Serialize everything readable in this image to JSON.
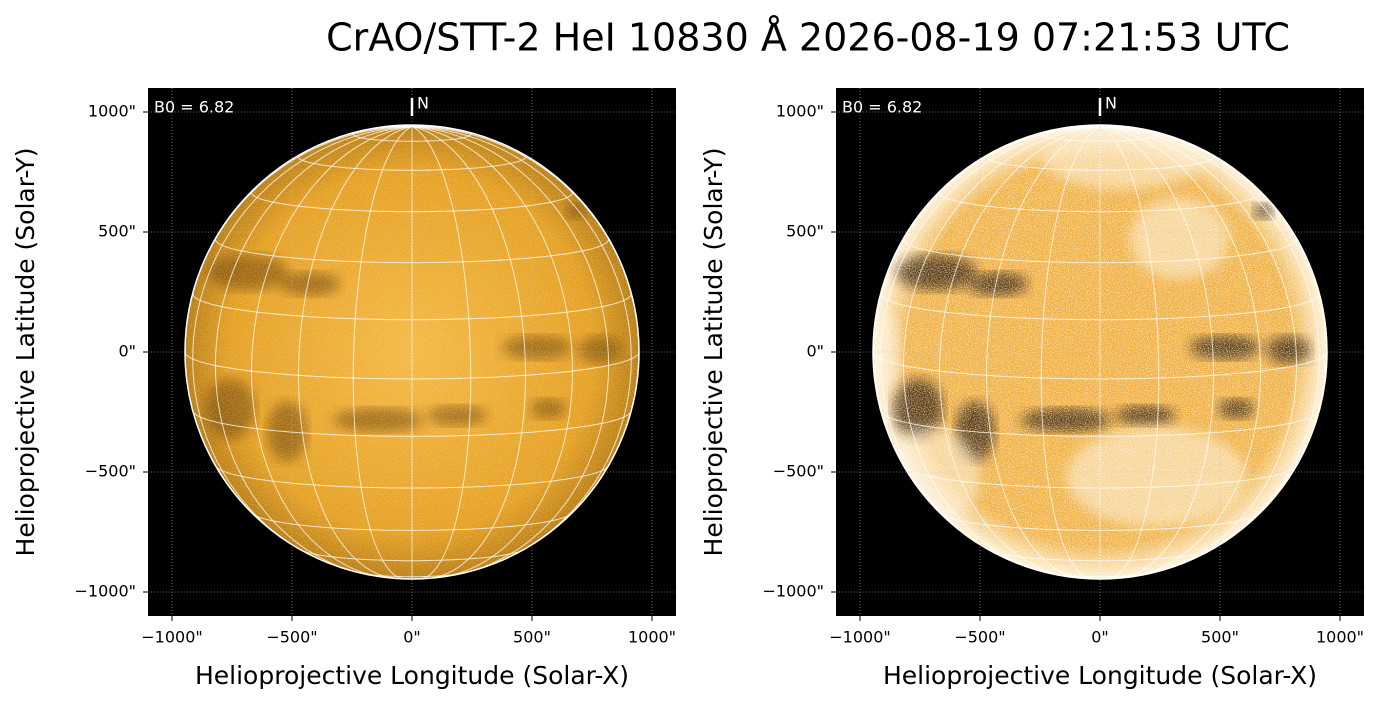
{
  "title": "CrAO/STT-2 HeI 10830 Å 2026-08-19 07:21:53 UTC",
  "chart_data": [
    {
      "type": "image",
      "xlabel": "Helioprojective Longitude (Solar-X)",
      "ylabel": "Helioprojective Latitude (Solar-Y)",
      "xlim": [
        -1100,
        1100
      ],
      "ylim": [
        -1100,
        1100
      ],
      "xticks": [
        {
          "value": -1000,
          "label": "−1000\""
        },
        {
          "value": -500,
          "label": "−500\""
        },
        {
          "value": 0,
          "label": "0\""
        },
        {
          "value": 500,
          "label": "500\""
        },
        {
          "value": 1000,
          "label": "1000\""
        }
      ],
      "yticks": [
        {
          "value": -1000,
          "label": "−1000\""
        },
        {
          "value": -500,
          "label": "−500\""
        },
        {
          "value": 0,
          "label": "0\""
        },
        {
          "value": 500,
          "label": "500\""
        },
        {
          "value": 1000,
          "label": "1000\""
        }
      ],
      "annotation": {
        "value": 6.82,
        "label": "B0 = 6.82"
      },
      "north_label": "N",
      "grid": true
    },
    {
      "type": "image",
      "xlabel": "Helioprojective Longitude (Solar-X)",
      "ylabel": "Helioprojective Latitude (Solar-Y)",
      "xlim": [
        -1100,
        1100
      ],
      "ylim": [
        -1100,
        1100
      ],
      "xticks": [
        {
          "value": -1000,
          "label": "−1000\""
        },
        {
          "value": -500,
          "label": "−500\""
        },
        {
          "value": 0,
          "label": "0\""
        },
        {
          "value": 500,
          "label": "500\""
        },
        {
          "value": 1000,
          "label": "1000\""
        }
      ],
      "yticks": [
        {
          "value": -1000,
          "label": "−1000\""
        },
        {
          "value": -500,
          "label": "−500\""
        },
        {
          "value": 0,
          "label": "0\""
        },
        {
          "value": 500,
          "label": "500\""
        },
        {
          "value": 1000,
          "label": "1000\""
        }
      ],
      "annotation": {
        "value": 6.82,
        "label": "B0 = 6.82"
      },
      "north_label": "N",
      "grid": true
    }
  ]
}
